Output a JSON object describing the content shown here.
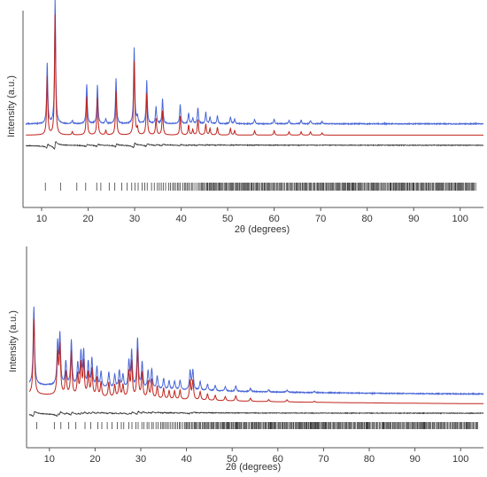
{
  "colors": {
    "observed": "#4a67d6",
    "calculated": "#c0241c",
    "difference": "#333333",
    "reflections": "#222222",
    "axis": "#555555"
  },
  "chart_data": [
    {
      "type": "line",
      "title": "",
      "xlabel": "2θ (degrees)",
      "ylabel": "Intensity (a.u.)",
      "xlim": [
        6,
        105
      ],
      "ylim": [
        -52,
        100
      ],
      "xticks": [
        "10",
        "20",
        "30",
        "40",
        "50",
        "60",
        "70",
        "80",
        "90",
        "100"
      ],
      "grid": false,
      "baselines": {
        "observed": 0,
        "calculated": -10,
        "difference": -19
      },
      "peaks": [
        [
          11.2,
          53
        ],
        [
          12.9,
          110
        ],
        [
          16.6,
          3
        ],
        [
          19.7,
          35
        ],
        [
          22.0,
          34
        ],
        [
          23.8,
          4
        ],
        [
          26.0,
          40
        ],
        [
          29.9,
          67
        ],
        [
          30.6,
          6
        ],
        [
          32.6,
          38
        ],
        [
          34.6,
          15
        ],
        [
          36.0,
          22
        ],
        [
          39.8,
          17
        ],
        [
          41.6,
          9
        ],
        [
          42.5,
          5
        ],
        [
          43.6,
          14
        ],
        [
          45.3,
          10
        ],
        [
          46.2,
          6
        ],
        [
          47.8,
          7
        ],
        [
          50.6,
          6
        ],
        [
          51.5,
          4
        ],
        [
          55.8,
          4
        ],
        [
          60.0,
          4
        ],
        [
          63.2,
          3
        ],
        [
          65.8,
          3
        ],
        [
          67.8,
          3
        ],
        [
          70.3,
          2
        ]
      ],
      "reflections_start": 10.8,
      "reflections_end": 103.5,
      "series": [
        {
          "name": "",
          "role": "observed"
        },
        {
          "name": "",
          "role": "calculated"
        },
        {
          "name": "",
          "role": "difference"
        },
        {
          "name": "",
          "role": "reflections"
        }
      ]
    },
    {
      "type": "line",
      "title": "",
      "xlabel": "2θ (degrees)",
      "ylabel": "Intensity (a.u.)",
      "xlim": [
        5,
        105
      ],
      "ylim": [
        -35,
        110
      ],
      "xticks": [
        "10",
        "20",
        "30",
        "40",
        "50",
        "60",
        "70",
        "80",
        "90",
        "100"
      ],
      "grid": false,
      "baselines": {
        "observed": 0,
        "calculated": -9,
        "difference": -17
      },
      "background": {
        "amplitude": 10,
        "decay": 7
      },
      "peaks": [
        [
          6.6,
          72
        ],
        [
          11.8,
          38
        ],
        [
          12.3,
          46
        ],
        [
          13.6,
          22
        ],
        [
          14.8,
          42
        ],
        [
          16.2,
          20
        ],
        [
          16.9,
          30
        ],
        [
          17.5,
          32
        ],
        [
          18.5,
          22
        ],
        [
          19.3,
          26
        ],
        [
          20.4,
          18
        ],
        [
          21.3,
          14
        ],
        [
          23.0,
          14
        ],
        [
          24.3,
          12
        ],
        [
          25.3,
          16
        ],
        [
          26.1,
          12
        ],
        [
          27.4,
          24
        ],
        [
          28.0,
          34
        ],
        [
          29.3,
          46
        ],
        [
          30.3,
          24
        ],
        [
          31.6,
          16
        ],
        [
          32.4,
          18
        ],
        [
          33.6,
          12
        ],
        [
          35.0,
          10
        ],
        [
          36.2,
          8
        ],
        [
          37.4,
          8
        ],
        [
          38.6,
          9
        ],
        [
          40.8,
          18
        ],
        [
          41.4,
          18
        ],
        [
          43.0,
          8
        ],
        [
          44.6,
          6
        ],
        [
          46.3,
          5
        ],
        [
          48.5,
          4
        ],
        [
          50.8,
          5
        ],
        [
          54.0,
          3
        ],
        [
          58.0,
          2
        ],
        [
          62.0,
          2
        ],
        [
          68.0,
          1
        ]
      ],
      "reflections_start": 7.2,
      "reflections_end": 103.8,
      "series": [
        {
          "name": "",
          "role": "observed"
        },
        {
          "name": "",
          "role": "calculated"
        },
        {
          "name": "",
          "role": "difference"
        },
        {
          "name": "",
          "role": "reflections"
        }
      ]
    }
  ]
}
